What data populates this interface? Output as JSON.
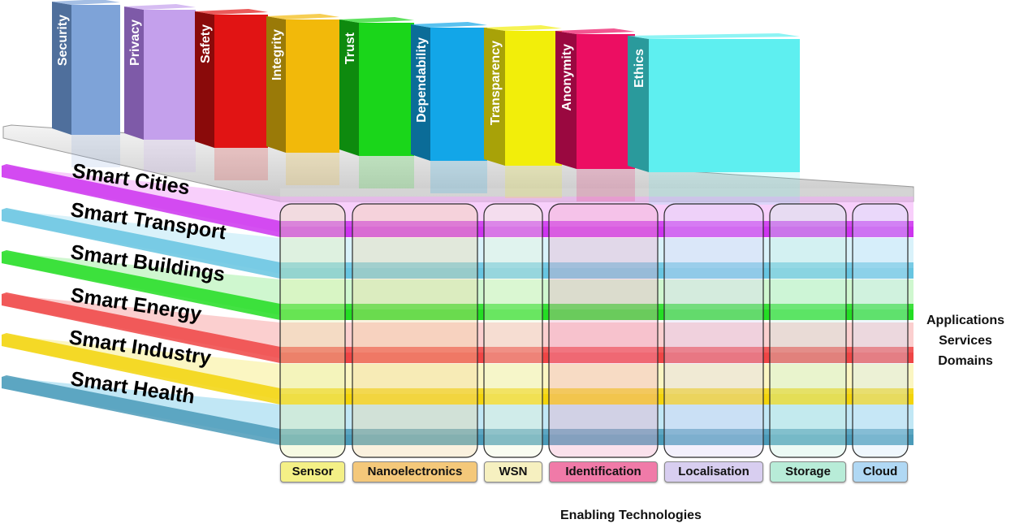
{
  "pillars": [
    {
      "label": "Security",
      "color": "#7ea3d8",
      "dark": "#4f6f9c"
    },
    {
      "label": "Privacy",
      "color": "#c4a0ec",
      "dark": "#7e5aa8"
    },
    {
      "label": "Safety",
      "color": "#e11414",
      "dark": "#8a0a0a"
    },
    {
      "label": "Integrity",
      "color": "#f2b90a",
      "dark": "#9a7a08"
    },
    {
      "label": "Trust",
      "color": "#1ad61a",
      "dark": "#0e8a0e"
    },
    {
      "label": "Dependability",
      "color": "#12a6e8",
      "dark": "#0b6c98"
    },
    {
      "label": "Transparency",
      "color": "#f2ee0a",
      "dark": "#a8a208"
    },
    {
      "label": "Anonymity",
      "color": "#ec0e62",
      "dark": "#9a0840"
    },
    {
      "label": "Ethics",
      "color": "#5eeff0",
      "dark": "#2a9a9c"
    }
  ],
  "domains": [
    {
      "label": "Smart Cities",
      "color": "#cc33ee",
      "fill": "#f2a8f8"
    },
    {
      "label": "Smart Transport",
      "color": "#66c4e0",
      "fill": "#b9e8f6"
    },
    {
      "label": "Smart Buildings",
      "color": "#22dd22",
      "fill": "#a8f0a8"
    },
    {
      "label": "Smart Energy",
      "color": "#ee4444",
      "fill": "#f8a8a8"
    },
    {
      "label": "Smart Industry",
      "color": "#f2d40a",
      "fill": "#f8ee90"
    },
    {
      "label": "Smart Health",
      "color": "#4a9ab8",
      "fill": "#8ed4ec"
    }
  ],
  "technologies": [
    {
      "label": "Sensor",
      "color": "#f4f086",
      "pillar": "#e8f2b0"
    },
    {
      "label": "Nanoelectronics",
      "color": "#f4c87a",
      "pillar": "#f2d8a0"
    },
    {
      "label": "WSN",
      "color": "#f6f0c0",
      "pillar": "#eef6d8"
    },
    {
      "label": "Identification",
      "color": "#f07aa8",
      "pillar": "#f0a8c8"
    },
    {
      "label": "Localisation",
      "color": "#d8cef0",
      "pillar": "#dcd4f6"
    },
    {
      "label": "Storage",
      "color": "#b8ecd8",
      "pillar": "#c8f2e2"
    },
    {
      "label": "Cloud",
      "color": "#b0d8f4",
      "pillar": "#d0e8f8"
    }
  ],
  "right_labels": [
    "Applications",
    "Services",
    "Domains"
  ],
  "bottom_label": "Enabling Technologies"
}
